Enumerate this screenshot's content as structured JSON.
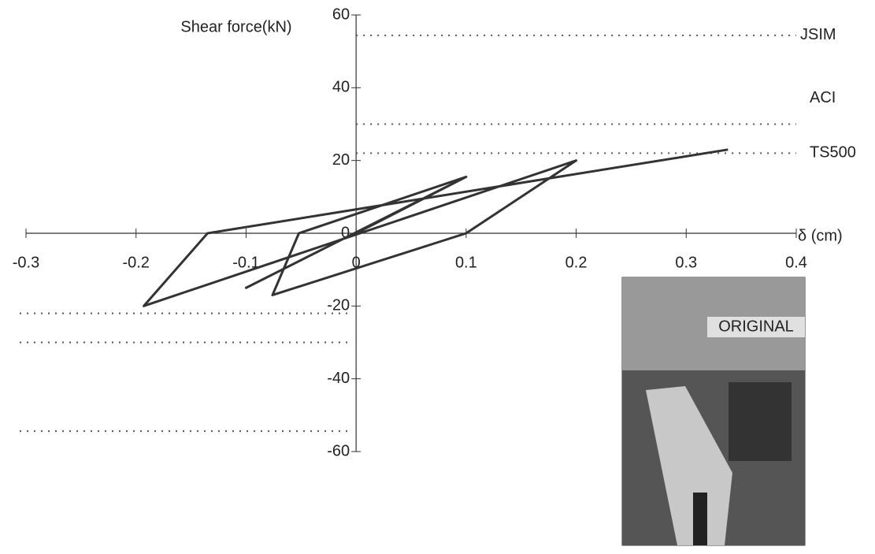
{
  "chart_data": {
    "type": "line",
    "y_label": "Shear force(kN)",
    "x_label": "δ (cm)",
    "xlim": [
      -0.3,
      0.4
    ],
    "xticks": [
      -0.3,
      -0.2,
      -0.1,
      0,
      0.1,
      0.2,
      0.3,
      0.4
    ],
    "ylim": [
      -60,
      60
    ],
    "yticks": [
      -60,
      -40,
      -20,
      0,
      20,
      40,
      60
    ],
    "series": [
      {
        "color": "#333333",
        "x": [
          0,
          0.1,
          -0.1,
          0.1,
          -0.052,
          -0.076,
          0.1,
          0.2,
          -0.193,
          -0.135,
          0.338
        ],
        "values": [
          0,
          15.5,
          -15,
          15.5,
          0,
          -17,
          0,
          20,
          -20,
          0,
          23
        ]
      }
    ],
    "reference_lines": [
      {
        "label": "JSIM",
        "values": [
          54.4,
          -54.4
        ]
      },
      {
        "label": "ACI",
        "values": [
          30,
          -30
        ]
      },
      {
        "label": "TS500",
        "values": [
          22,
          -22
        ]
      }
    ],
    "inset_label": "ORIGINAL"
  }
}
